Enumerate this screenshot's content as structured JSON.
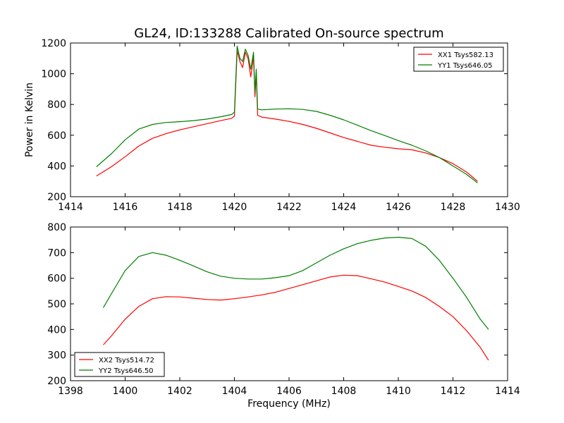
{
  "chart_data": [
    {
      "type": "line",
      "title": "GL24, ID:133288 Calibrated On-source spectrum",
      "xlabel": "",
      "ylabel": "Power in Kelvin",
      "xlim": [
        1414,
        1430
      ],
      "ylim": [
        200,
        1200
      ],
      "xticks": [
        "1414",
        "1416",
        "1418",
        "1420",
        "1422",
        "1424",
        "1426",
        "1428",
        "1430"
      ],
      "yticks": [
        "200",
        "400",
        "600",
        "800",
        "1000",
        "1200"
      ],
      "legend_position": "upper right",
      "series": [
        {
          "name": "XX1 Tsys582.13",
          "color": "#ff0000",
          "points": [
            [
              1414.95,
              335
            ],
            [
              1415.5,
              395
            ],
            [
              1416,
              460
            ],
            [
              1416.5,
              530
            ],
            [
              1417,
              580
            ],
            [
              1417.5,
              610
            ],
            [
              1418,
              635
            ],
            [
              1418.5,
              655
            ],
            [
              1419,
              675
            ],
            [
              1419.5,
              695
            ],
            [
              1419.9,
              710
            ],
            [
              1420.0,
              725
            ],
            [
              1420.1,
              1150
            ],
            [
              1420.2,
              1080
            ],
            [
              1420.3,
              1040
            ],
            [
              1420.4,
              1140
            ],
            [
              1420.5,
              1100
            ],
            [
              1420.6,
              980
            ],
            [
              1420.7,
              1110
            ],
            [
              1420.75,
              850
            ],
            [
              1420.8,
              1000
            ],
            [
              1420.85,
              730
            ],
            [
              1421,
              718
            ],
            [
              1421.5,
              705
            ],
            [
              1422,
              690
            ],
            [
              1422.5,
              670
            ],
            [
              1423,
              645
            ],
            [
              1423.5,
              615
            ],
            [
              1424,
              585
            ],
            [
              1424.5,
              560
            ],
            [
              1425,
              535
            ],
            [
              1425.5,
              522
            ],
            [
              1426,
              512
            ],
            [
              1426.5,
              505
            ],
            [
              1427,
              485
            ],
            [
              1427.5,
              455
            ],
            [
              1428,
              415
            ],
            [
              1428.5,
              360
            ],
            [
              1428.9,
              300
            ]
          ]
        },
        {
          "name": "YY1 Tsys646.05",
          "color": "#008000",
          "points": [
            [
              1414.95,
              395
            ],
            [
              1415.5,
              480
            ],
            [
              1416,
              570
            ],
            [
              1416.5,
              640
            ],
            [
              1417,
              670
            ],
            [
              1417.5,
              683
            ],
            [
              1418,
              688
            ],
            [
              1418.5,
              695
            ],
            [
              1419,
              705
            ],
            [
              1419.5,
              720
            ],
            [
              1419.9,
              735
            ],
            [
              1420.0,
              750
            ],
            [
              1420.1,
              1180
            ],
            [
              1420.2,
              1100
            ],
            [
              1420.3,
              1080
            ],
            [
              1420.4,
              1160
            ],
            [
              1420.5,
              1120
            ],
            [
              1420.6,
              1030
            ],
            [
              1420.7,
              1140
            ],
            [
              1420.75,
              880
            ],
            [
              1420.8,
              1030
            ],
            [
              1420.85,
              770
            ],
            [
              1421,
              765
            ],
            [
              1421.5,
              770
            ],
            [
              1422,
              772
            ],
            [
              1422.5,
              768
            ],
            [
              1423,
              755
            ],
            [
              1423.5,
              730
            ],
            [
              1424,
              700
            ],
            [
              1424.5,
              665
            ],
            [
              1425,
              630
            ],
            [
              1425.5,
              598
            ],
            [
              1426,
              565
            ],
            [
              1426.5,
              535
            ],
            [
              1427,
              498
            ],
            [
              1427.5,
              455
            ],
            [
              1428,
              400
            ],
            [
              1428.5,
              345
            ],
            [
              1428.9,
              290
            ]
          ]
        }
      ]
    },
    {
      "type": "line",
      "title": "",
      "xlabel": "Frequency (MHz)",
      "ylabel": "",
      "xlim": [
        1398,
        1414
      ],
      "ylim": [
        200,
        800
      ],
      "xticks": [
        "1398",
        "1400",
        "1402",
        "1404",
        "1406",
        "1408",
        "1410",
        "1412",
        "1414"
      ],
      "yticks": [
        "200",
        "300",
        "400",
        "500",
        "600",
        "700",
        "800"
      ],
      "legend_position": "lower left",
      "series": [
        {
          "name": "XX2 Tsys514.72",
          "color": "#ff0000",
          "points": [
            [
              1399.2,
              340
            ],
            [
              1399.5,
              375
            ],
            [
              1400,
              440
            ],
            [
              1400.5,
              490
            ],
            [
              1401,
              520
            ],
            [
              1401.5,
              528
            ],
            [
              1402,
              527
            ],
            [
              1402.5,
              522
            ],
            [
              1403,
              517
            ],
            [
              1403.5,
              515
            ],
            [
              1404,
              520
            ],
            [
              1404.5,
              527
            ],
            [
              1405,
              535
            ],
            [
              1405.5,
              545
            ],
            [
              1406,
              560
            ],
            [
              1406.5,
              575
            ],
            [
              1407,
              590
            ],
            [
              1407.5,
              605
            ],
            [
              1408,
              612
            ],
            [
              1408.5,
              610
            ],
            [
              1409,
              598
            ],
            [
              1409.5,
              585
            ],
            [
              1410,
              568
            ],
            [
              1410.5,
              550
            ],
            [
              1411,
              525
            ],
            [
              1411.5,
              490
            ],
            [
              1412,
              450
            ],
            [
              1412.5,
              395
            ],
            [
              1413,
              330
            ],
            [
              1413.3,
              280
            ]
          ]
        },
        {
          "name": "YY2 Tsys646.50",
          "color": "#008000",
          "points": [
            [
              1399.2,
              485
            ],
            [
              1399.5,
              540
            ],
            [
              1400,
              630
            ],
            [
              1400.5,
              685
            ],
            [
              1401,
              700
            ],
            [
              1401.5,
              690
            ],
            [
              1402,
              670
            ],
            [
              1402.5,
              648
            ],
            [
              1403,
              625
            ],
            [
              1403.5,
              608
            ],
            [
              1404,
              600
            ],
            [
              1404.5,
              597
            ],
            [
              1405,
              597
            ],
            [
              1405.5,
              602
            ],
            [
              1406,
              610
            ],
            [
              1406.5,
              630
            ],
            [
              1407,
              660
            ],
            [
              1407.5,
              690
            ],
            [
              1408,
              715
            ],
            [
              1408.5,
              735
            ],
            [
              1409,
              748
            ],
            [
              1409.5,
              757
            ],
            [
              1410,
              760
            ],
            [
              1410.5,
              755
            ],
            [
              1411,
              725
            ],
            [
              1411.5,
              670
            ],
            [
              1412,
              600
            ],
            [
              1412.5,
              525
            ],
            [
              1413,
              440
            ],
            [
              1413.3,
              400
            ]
          ]
        }
      ]
    }
  ]
}
